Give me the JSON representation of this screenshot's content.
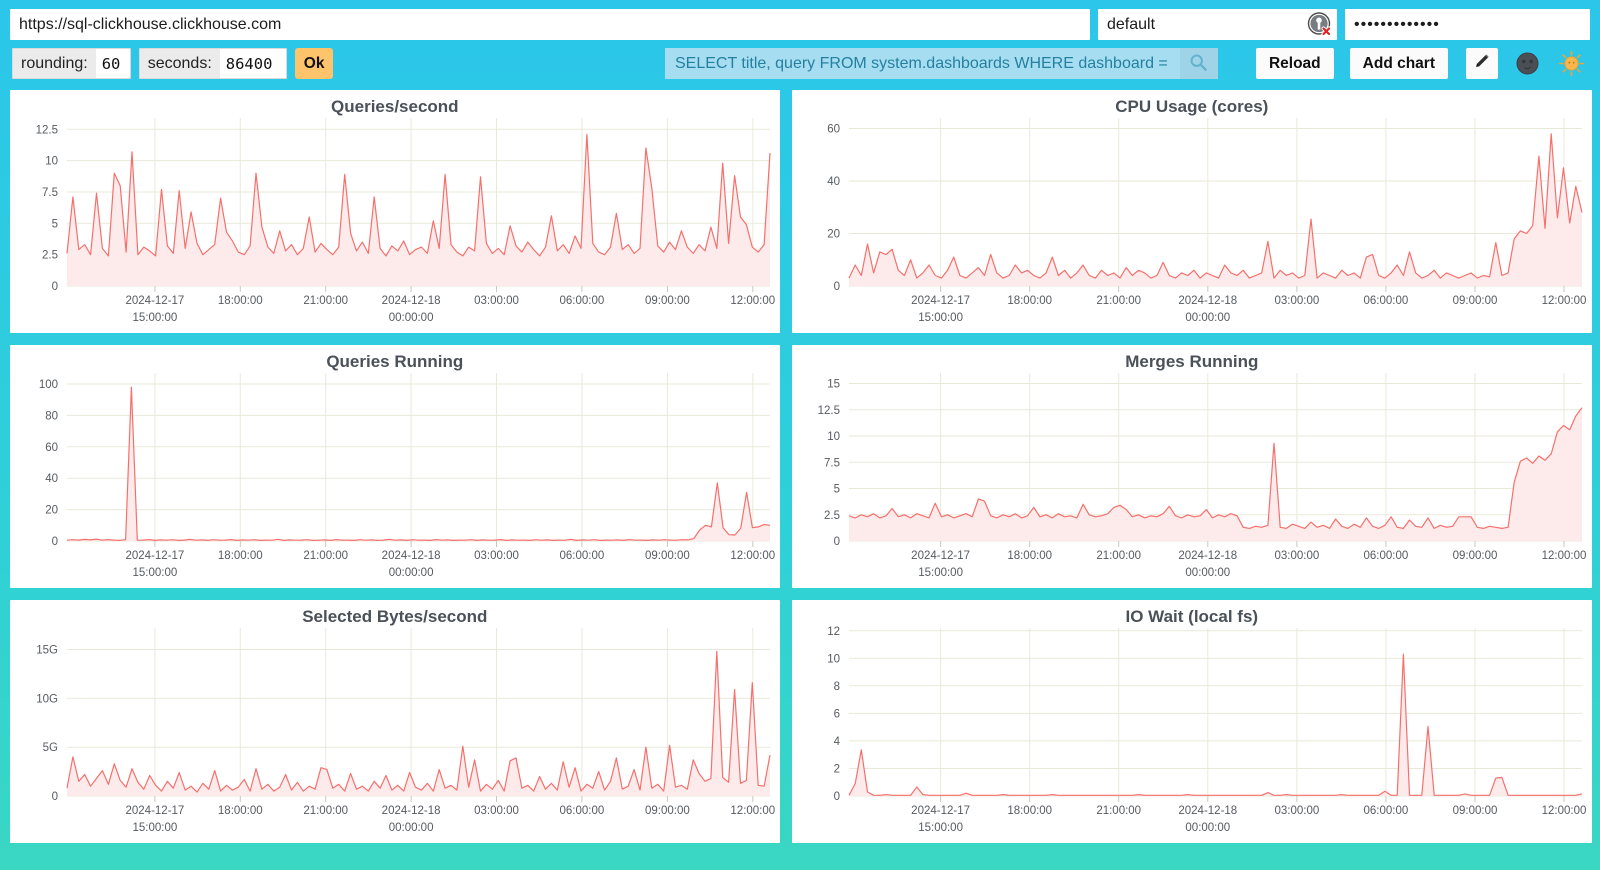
{
  "address_bar": {
    "url": "https://sql-clickhouse.clickhouse.com",
    "user": "default",
    "password_masked": "•••••••••••••"
  },
  "controls": {
    "rounding_label": "rounding:",
    "rounding_value": "60",
    "seconds_label": "seconds:",
    "seconds_value": "86400",
    "ok_label": "Ok",
    "query": "SELECT title, query FROM system.dashboards WHERE dashboard = '",
    "reload_label": "Reload",
    "add_chart_label": "Add chart"
  },
  "icons": {
    "search": "magnifier",
    "password_manager": "password-manager-badge-with-red-x",
    "edit": "pencil",
    "theme_dark": "new-moon-face",
    "theme_light": "sun-with-face"
  },
  "colors": {
    "line": "#f5706c",
    "fill": "#fdebeb",
    "grid": "#e9e9da",
    "tick": "#c9c9ba",
    "background_top": "#2bc6ea",
    "background_bottom": "#3ad7c3",
    "ok_button": "#fec46c",
    "search_bg": "#a7ddf1",
    "search_text": "#23809f"
  },
  "chart_data": [
    {
      "type": "line",
      "title": "Queries/second",
      "ymax": 13.4,
      "yticks": [
        [
          0,
          "0"
        ],
        [
          2.5,
          "2.5"
        ],
        [
          5,
          "5"
        ],
        [
          7.5,
          "7.5"
        ],
        [
          10,
          "10"
        ],
        [
          12.5,
          "12.5"
        ]
      ],
      "xticks": [
        [
          "2024-12-17\n15:00:00",
          0.125
        ],
        [
          "18:00:00",
          0.2465
        ],
        [
          "21:00:00",
          0.368
        ],
        [
          "2024-12-18\n00:00:00",
          0.4895
        ],
        [
          "03:00:00",
          0.611
        ],
        [
          "06:00:00",
          0.7325
        ],
        [
          "09:00:00",
          0.854
        ],
        [
          "12:00:00",
          0.9755
        ]
      ],
      "values": [
        2.6,
        7.1,
        2.9,
        3.3,
        2.5,
        7.4,
        3.0,
        2.4,
        9.0,
        8.0,
        2.7,
        10.7,
        2.5,
        3.1,
        2.8,
        2.4,
        7.7,
        3.2,
        2.6,
        7.6,
        3.0,
        5.9,
        3.4,
        2.5,
        2.9,
        3.3,
        7.0,
        4.3,
        3.6,
        2.7,
        2.5,
        3.2,
        9.0,
        4.7,
        3.1,
        2.6,
        4.4,
        2.8,
        3.3,
        2.5,
        3.0,
        5.5,
        2.7,
        3.4,
        2.9,
        2.5,
        3.1,
        8.9,
        4.2,
        2.8,
        3.5,
        2.6,
        7.1,
        3.0,
        2.4,
        3.2,
        2.8,
        3.6,
        2.5,
        2.9,
        3.1,
        2.6,
        5.2,
        3.0,
        8.9,
        3.3,
        2.7,
        2.4,
        3.1,
        2.8,
        8.7,
        3.4,
        2.6,
        3.0,
        2.5,
        4.8,
        3.2,
        2.7,
        3.5,
        2.9,
        2.4,
        3.1,
        5.6,
        2.8,
        3.3,
        2.6,
        4.0,
        3.0,
        12.1,
        3.4,
        2.7,
        2.5,
        3.1,
        5.8,
        2.9,
        3.3,
        2.6,
        3.0,
        11.0,
        7.8,
        3.2,
        2.7,
        3.5,
        2.9,
        4.4,
        3.1,
        2.6,
        3.3,
        2.8,
        4.7,
        3.0,
        9.8,
        3.4,
        8.8,
        5.5,
        4.9,
        3.1,
        2.7,
        3.3,
        10.6
      ]
    },
    {
      "type": "line",
      "title": "CPU Usage (cores)",
      "ymax": 64,
      "yticks": [
        [
          0,
          "0"
        ],
        [
          20,
          "20"
        ],
        [
          40,
          "40"
        ],
        [
          60,
          "60"
        ]
      ],
      "xticks": [
        [
          "2024-12-17\n15:00:00",
          0.125
        ],
        [
          "18:00:00",
          0.2465
        ],
        [
          "21:00:00",
          0.368
        ],
        [
          "2024-12-18\n00:00:00",
          0.4895
        ],
        [
          "03:00:00",
          0.611
        ],
        [
          "06:00:00",
          0.7325
        ],
        [
          "09:00:00",
          0.854
        ],
        [
          "12:00:00",
          0.9755
        ]
      ],
      "values": [
        3,
        8,
        4,
        16,
        5,
        13,
        12,
        14,
        6,
        4,
        10,
        3,
        5,
        8,
        4,
        3,
        6,
        11,
        4,
        3,
        5,
        7,
        4,
        12,
        5,
        3,
        4,
        8,
        5,
        6,
        4,
        3,
        5,
        11,
        4,
        6,
        3,
        5,
        8,
        4,
        3,
        6,
        4,
        5,
        3,
        7,
        4,
        6,
        5,
        3,
        4,
        9,
        4,
        3,
        5,
        4,
        6,
        3,
        5,
        4,
        3,
        8,
        5,
        4,
        6,
        3,
        4,
        5,
        17,
        3,
        6,
        4,
        5,
        3,
        4,
        25.5,
        3,
        5,
        4,
        3,
        6,
        4,
        5,
        3,
        11,
        12,
        4,
        3,
        5,
        8,
        4,
        13,
        5,
        3,
        4,
        6,
        3,
        5,
        4,
        3,
        4,
        5,
        3,
        4,
        3.5,
        16.5,
        4,
        5,
        18,
        21,
        20,
        23,
        49.5,
        22,
        58,
        26,
        45,
        24,
        38,
        28
      ]
    },
    {
      "type": "line",
      "title": "Queries Running",
      "ymax": 107,
      "yticks": [
        [
          0,
          "0"
        ],
        [
          20,
          "20"
        ],
        [
          40,
          "40"
        ],
        [
          60,
          "60"
        ],
        [
          80,
          "80"
        ],
        [
          100,
          "100"
        ]
      ],
      "xticks": [
        [
          "2024-12-17\n15:00:00",
          0.125
        ],
        [
          "18:00:00",
          0.2465
        ],
        [
          "21:00:00",
          0.368
        ],
        [
          "2024-12-18\n00:00:00",
          0.4895
        ],
        [
          "03:00:00",
          0.611
        ],
        [
          "06:00:00",
          0.7325
        ],
        [
          "09:00:00",
          0.854
        ],
        [
          "12:00:00",
          0.9755
        ]
      ],
      "values": [
        0.5,
        0.8,
        0.6,
        1.0,
        0.7,
        1.2,
        0.5,
        0.9,
        0.6,
        0.4,
        0.8,
        98,
        0.6,
        0.5,
        0.9,
        0.4,
        0.7,
        0.5,
        0.8,
        0.4,
        0.6,
        1.0,
        0.5,
        0.7,
        0.4,
        0.8,
        0.5,
        0.6,
        0.9,
        0.4,
        0.7,
        0.5,
        0.8,
        0.4,
        0.6,
        0.5,
        1.1,
        0.4,
        0.7,
        0.5,
        0.6,
        0.8,
        0.4,
        0.5,
        0.7,
        0.4,
        0.9,
        0.5,
        0.6,
        0.4,
        0.8,
        0.5,
        0.7,
        0.4,
        0.6,
        1.0,
        0.5,
        0.7,
        0.4,
        0.8,
        0.5,
        0.6,
        0.4,
        0.9,
        0.5,
        0.7,
        0.4,
        0.6,
        0.5,
        0.8,
        0.4,
        0.7,
        0.5,
        0.6,
        0.9,
        0.4,
        0.7,
        0.5,
        0.6,
        0.4,
        0.8,
        0.5,
        0.7,
        0.4,
        0.6,
        0.5,
        1.0,
        0.4,
        0.7,
        0.5,
        0.8,
        0.4,
        0.6,
        0.5,
        0.7,
        0.4,
        0.9,
        0.5,
        0.6,
        0.4,
        0.7,
        0.5,
        0.8,
        0.6,
        0.5,
        0.8,
        0.7,
        1.5,
        7,
        10,
        9,
        37,
        8.5,
        4,
        3.8,
        8,
        31,
        8.5,
        9,
        10.5,
        10
      ]
    },
    {
      "type": "line",
      "title": "Merges Running",
      "ymax": 16,
      "yticks": [
        [
          0,
          "0"
        ],
        [
          2.5,
          "2.5"
        ],
        [
          5,
          "5"
        ],
        [
          7.5,
          "7.5"
        ],
        [
          10,
          "10"
        ],
        [
          12.5,
          "12.5"
        ],
        [
          15,
          "15"
        ]
      ],
      "xticks": [
        [
          "2024-12-17\n15:00:00",
          0.125
        ],
        [
          "18:00:00",
          0.2465
        ],
        [
          "21:00:00",
          0.368
        ],
        [
          "2024-12-18\n00:00:00",
          0.4895
        ],
        [
          "03:00:00",
          0.611
        ],
        [
          "06:00:00",
          0.7325
        ],
        [
          "09:00:00",
          0.854
        ],
        [
          "12:00:00",
          0.9755
        ]
      ],
      "values": [
        2.4,
        2.2,
        2.5,
        2.3,
        2.6,
        2.2,
        2.4,
        3.1,
        2.3,
        2.5,
        2.2,
        2.6,
        2.4,
        2.2,
        3.6,
        2.3,
        2.5,
        2.2,
        2.4,
        2.6,
        2.3,
        4.0,
        3.8,
        2.4,
        2.2,
        2.5,
        2.3,
        2.6,
        2.2,
        2.4,
        3.2,
        2.3,
        2.5,
        2.2,
        2.6,
        2.3,
        2.4,
        2.2,
        3.5,
        2.5,
        2.3,
        2.4,
        2.6,
        3.2,
        3.4,
        3.0,
        2.3,
        2.5,
        2.2,
        2.4,
        2.3,
        2.6,
        3.3,
        2.4,
        2.2,
        2.5,
        2.3,
        2.4,
        3.0,
        2.2,
        2.5,
        2.3,
        2.6,
        2.4,
        1.3,
        1.2,
        1.4,
        1.3,
        1.5,
        9.3,
        1.3,
        1.2,
        1.6,
        1.4,
        1.2,
        1.8,
        1.3,
        1.5,
        1.2,
        2.1,
        1.4,
        1.2,
        1.6,
        1.3,
        2.2,
        1.4,
        1.2,
        1.5,
        2.3,
        1.3,
        1.2,
        2.0,
        1.4,
        1.3,
        2.2,
        1.2,
        1.5,
        1.3,
        1.4,
        2.3,
        2.3,
        2.3,
        1.3,
        1.2,
        1.4,
        1.3,
        1.2,
        1.3,
        5.6,
        7.6,
        7.9,
        7.4,
        8.1,
        7.7,
        8.3,
        10.4,
        11.0,
        10.6,
        11.9,
        12.7
      ]
    },
    {
      "type": "line",
      "title": "Selected Bytes/second",
      "ymax": 17.2,
      "yticks": [
        [
          0,
          "0"
        ],
        [
          5,
          "5G"
        ],
        [
          10,
          "10G"
        ],
        [
          15,
          "15G"
        ]
      ],
      "xticks": [
        [
          "2024-12-17\n15:00:00",
          0.125
        ],
        [
          "18:00:00",
          0.2465
        ],
        [
          "21:00:00",
          0.368
        ],
        [
          "2024-12-18\n00:00:00",
          0.4895
        ],
        [
          "03:00:00",
          0.611
        ],
        [
          "06:00:00",
          0.7325
        ],
        [
          "09:00:00",
          0.854
        ],
        [
          "12:00:00",
          0.9755
        ]
      ],
      "values": [
        0.8,
        4.0,
        1.5,
        2.2,
        1.0,
        1.8,
        2.6,
        1.2,
        3.3,
        1.6,
        0.9,
        2.8,
        1.4,
        0.7,
        2.1,
        1.1,
        0.5,
        1.5,
        0.8,
        2.4,
        0.6,
        1.0,
        0.4,
        1.3,
        0.7,
        2.6,
        0.5,
        1.1,
        0.6,
        0.9,
        1.7,
        0.5,
        2.8,
        0.7,
        1.2,
        0.5,
        0.9,
        2.2,
        0.6,
        1.4,
        0.5,
        1.0,
        0.7,
        2.9,
        2.7,
        0.8,
        1.2,
        0.5,
        2.3,
        0.7,
        1.0,
        0.5,
        1.5,
        0.8,
        2.1,
        0.6,
        1.1,
        0.5,
        2.4,
        0.9,
        0.6,
        1.3,
        0.5,
        2.7,
        0.8,
        1.1,
        0.6,
        5.1,
        0.9,
        3.7,
        0.5,
        1.2,
        0.7,
        1.6,
        0.5,
        3.6,
        3.9,
        0.8,
        1.1,
        0.5,
        2.0,
        0.7,
        1.3,
        0.6,
        3.5,
        0.9,
        2.9,
        0.5,
        1.2,
        0.8,
        2.5,
        0.6,
        1.5,
        3.9,
        0.7,
        1.0,
        2.7,
        0.6,
        5.0,
        0.8,
        1.2,
        0.5,
        5.2,
        0.9,
        1.1,
        0.7,
        3.7,
        2.3,
        1.5,
        1.8,
        14.8,
        1.9,
        1.4,
        10.9,
        1.3,
        1.6,
        11.6,
        1.1,
        1.0,
        4.2
      ]
    },
    {
      "type": "line",
      "title": "IO Wait (local fs)",
      "ymax": 12.2,
      "yticks": [
        [
          0,
          "0"
        ],
        [
          2,
          "2"
        ],
        [
          4,
          "4"
        ],
        [
          6,
          "6"
        ],
        [
          8,
          "8"
        ],
        [
          10,
          "10"
        ],
        [
          12,
          "12"
        ]
      ],
      "xticks": [
        [
          "2024-12-17\n15:00:00",
          0.125
        ],
        [
          "18:00:00",
          0.2465
        ],
        [
          "21:00:00",
          0.368
        ],
        [
          "2024-12-18\n00:00:00",
          0.4895
        ],
        [
          "03:00:00",
          0.611
        ],
        [
          "06:00:00",
          0.7325
        ],
        [
          "09:00:00",
          0.854
        ],
        [
          "12:00:00",
          0.9755
        ]
      ],
      "values": [
        0.05,
        0.9,
        3.35,
        0.3,
        0.05,
        0.05,
        0.1,
        0.05,
        0.05,
        0.05,
        0.05,
        0.65,
        0.1,
        0.05,
        0.05,
        0.05,
        0.05,
        0.05,
        0.05,
        0.2,
        0.05,
        0.05,
        0.05,
        0.05,
        0.05,
        0.1,
        0.05,
        0.05,
        0.05,
        0.05,
        0.05,
        0.05,
        0.05,
        0.1,
        0.05,
        0.05,
        0.05,
        0.05,
        0.05,
        0.05,
        0.05,
        0.05,
        0.05,
        0.05,
        0.05,
        0.05,
        0.05,
        0.1,
        0.05,
        0.05,
        0.05,
        0.05,
        0.05,
        0.05,
        0.05,
        0.1,
        0.05,
        0.05,
        0.05,
        0.05,
        0.05,
        0.05,
        0.05,
        0.05,
        0.05,
        0.05,
        0.05,
        0.05,
        0.25,
        0.05,
        0.05,
        0.1,
        0.05,
        0.05,
        0.05,
        0.05,
        0.05,
        0.05,
        0.05,
        0.05,
        0.1,
        0.05,
        0.05,
        0.05,
        0.05,
        0.05,
        0.05,
        0.35,
        0.05,
        0.05,
        10.3,
        0.05,
        0.05,
        0.05,
        5.05,
        0.05,
        0.05,
        0.05,
        0.05,
        0.05,
        0.15,
        0.05,
        0.05,
        0.05,
        0.05,
        1.3,
        1.35,
        0.05,
        0.05,
        0.05,
        0.05,
        0.05,
        0.05,
        0.05,
        0.05,
        0.05,
        0.05,
        0.05,
        0.05,
        0.15
      ]
    }
  ]
}
